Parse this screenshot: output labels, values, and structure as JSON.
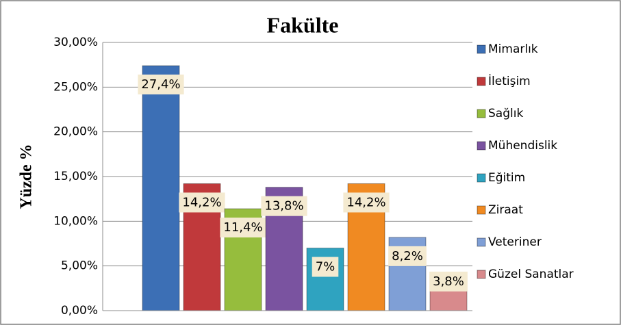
{
  "chart_data": {
    "type": "bar",
    "title": "Fakülte",
    "y_label": "Yüzde %",
    "categories": [
      "Mimarlık",
      "İletişim",
      "Sağlık",
      "Mühendislik",
      "Eğitim",
      "Ziraat",
      "Veteriner",
      "Güzel Sanatlar"
    ],
    "values": [
      27.4,
      14.2,
      11.4,
      13.8,
      7,
      14.2,
      8.2,
      3.8
    ],
    "value_labels": [
      "27,4%",
      "14,2%",
      "11,4%",
      "13,8%",
      "7%",
      "14,2%",
      "8,2%",
      "3,8%"
    ],
    "colors": [
      "#3c6fb5",
      "#c0393b",
      "#96bd3d",
      "#7a53a0",
      "#2fa3c0",
      "#f08a22",
      "#7f9fd6",
      "#d88a8c"
    ],
    "ylim": [
      0,
      30
    ],
    "yticks": [
      {
        "value": 0,
        "label": "0,00%"
      },
      {
        "value": 5,
        "label": "5,00%"
      },
      {
        "value": 10,
        "label": "10,00%"
      },
      {
        "value": 15,
        "label": "15,00%"
      },
      {
        "value": 20,
        "label": "20,00%"
      },
      {
        "value": 25,
        "label": "25,00%"
      },
      {
        "value": 30,
        "label": "30,00%"
      }
    ],
    "grid": true,
    "legend": "right"
  }
}
